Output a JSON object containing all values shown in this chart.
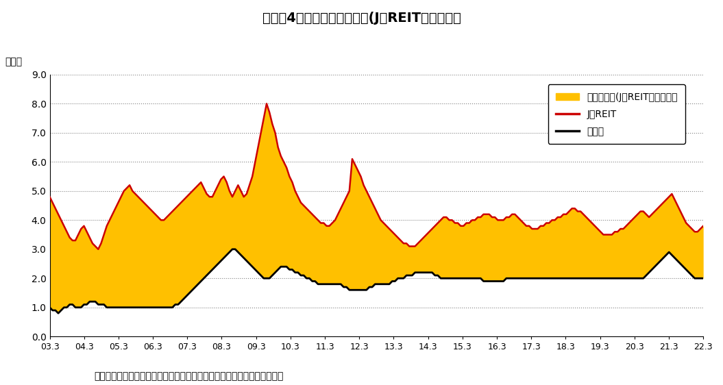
{
  "title": "図表－4　配当利回りの推移(J－REIT、国内株）",
  "ylabel": "（％）",
  "source_text": "（出所）東京証券取引所のデータなどをもとにニッセイ基礎研究所が作成",
  "x_labels": [
    "03.3",
    "04.3",
    "05.3",
    "06.3",
    "07.3",
    "08.3",
    "09.3",
    "10.3",
    "11.3",
    "12.3",
    "13.3",
    "14.3",
    "15.3",
    "16.3",
    "17.3",
    "18.3",
    "19.3",
    "20.3",
    "21.3",
    "22.3"
  ],
  "ylim": [
    0.0,
    9.0
  ],
  "yticks": [
    0.0,
    1.0,
    2.0,
    3.0,
    4.0,
    5.0,
    6.0,
    7.0,
    8.0,
    9.0
  ],
  "jreit_color": "#cc0000",
  "domestic_color": "#000000",
  "spread_color": "#FFC000",
  "legend_spread": "利回り格差(J－REIT－国内株）",
  "legend_jreit": "J－REIT",
  "legend_domestic": "国内株",
  "background_color": "#ffffff",
  "jreit": [
    4.8,
    4.6,
    4.4,
    4.2,
    4.0,
    3.8,
    3.6,
    3.4,
    3.3,
    3.3,
    3.5,
    3.7,
    3.8,
    3.6,
    3.4,
    3.2,
    3.1,
    3.0,
    3.2,
    3.5,
    3.8,
    4.0,
    4.2,
    4.4,
    4.6,
    4.8,
    5.0,
    5.1,
    5.2,
    5.0,
    4.9,
    4.8,
    4.7,
    4.6,
    4.5,
    4.4,
    4.3,
    4.2,
    4.1,
    4.0,
    4.0,
    4.1,
    4.2,
    4.3,
    4.4,
    4.5,
    4.6,
    4.7,
    4.8,
    4.9,
    5.0,
    5.1,
    5.2,
    5.3,
    5.1,
    4.9,
    4.8,
    4.8,
    5.0,
    5.2,
    5.4,
    5.5,
    5.3,
    5.0,
    4.8,
    5.0,
    5.2,
    5.0,
    4.8,
    4.9,
    5.2,
    5.5,
    6.0,
    6.5,
    7.0,
    7.5,
    8.0,
    7.7,
    7.3,
    7.0,
    6.5,
    6.2,
    6.0,
    5.8,
    5.5,
    5.3,
    5.0,
    4.8,
    4.6,
    4.5,
    4.4,
    4.3,
    4.2,
    4.1,
    4.0,
    3.9,
    3.9,
    3.8,
    3.8,
    3.9,
    4.0,
    4.2,
    4.4,
    4.6,
    4.8,
    5.0,
    6.1,
    5.9,
    5.7,
    5.5,
    5.2,
    5.0,
    4.8,
    4.6,
    4.4,
    4.2,
    4.0,
    3.9,
    3.8,
    3.7,
    3.6,
    3.5,
    3.4,
    3.3,
    3.2,
    3.2,
    3.1,
    3.1,
    3.1,
    3.2,
    3.3,
    3.4,
    3.5,
    3.6,
    3.7,
    3.8,
    3.9,
    4.0,
    4.1,
    4.1,
    4.0,
    4.0,
    3.9,
    3.9,
    3.8,
    3.8,
    3.9,
    3.9,
    4.0,
    4.0,
    4.1,
    4.1,
    4.2,
    4.2,
    4.2,
    4.1,
    4.1,
    4.0,
    4.0,
    4.0,
    4.1,
    4.1,
    4.2,
    4.2,
    4.1,
    4.0,
    3.9,
    3.8,
    3.8,
    3.7,
    3.7,
    3.7,
    3.8,
    3.8,
    3.9,
    3.9,
    4.0,
    4.0,
    4.1,
    4.1,
    4.2,
    4.2,
    4.3,
    4.4,
    4.4,
    4.3,
    4.3,
    4.2,
    4.1,
    4.0,
    3.9,
    3.8,
    3.7,
    3.6,
    3.5,
    3.5,
    3.5,
    3.5,
    3.6,
    3.6,
    3.7,
    3.7,
    3.8,
    3.9,
    4.0,
    4.1,
    4.2,
    4.3,
    4.3,
    4.2,
    4.1,
    4.2,
    4.3,
    4.4,
    4.5,
    4.6,
    4.7,
    4.8,
    4.9,
    4.7,
    4.5,
    4.3,
    4.1,
    3.9,
    3.8,
    3.7,
    3.6,
    3.6,
    3.7,
    3.8
  ],
  "domestic": [
    1.0,
    0.9,
    0.9,
    0.8,
    0.9,
    1.0,
    1.0,
    1.1,
    1.1,
    1.0,
    1.0,
    1.0,
    1.1,
    1.1,
    1.2,
    1.2,
    1.2,
    1.1,
    1.1,
    1.1,
    1.0,
    1.0,
    1.0,
    1.0,
    1.0,
    1.0,
    1.0,
    1.0,
    1.0,
    1.0,
    1.0,
    1.0,
    1.0,
    1.0,
    1.0,
    1.0,
    1.0,
    1.0,
    1.0,
    1.0,
    1.0,
    1.0,
    1.0,
    1.0,
    1.1,
    1.1,
    1.2,
    1.3,
    1.4,
    1.5,
    1.6,
    1.7,
    1.8,
    1.9,
    2.0,
    2.1,
    2.2,
    2.3,
    2.4,
    2.5,
    2.6,
    2.7,
    2.8,
    2.9,
    3.0,
    3.0,
    2.9,
    2.8,
    2.7,
    2.6,
    2.5,
    2.4,
    2.3,
    2.2,
    2.1,
    2.0,
    2.0,
    2.0,
    2.1,
    2.2,
    2.3,
    2.4,
    2.4,
    2.4,
    2.3,
    2.3,
    2.2,
    2.2,
    2.1,
    2.1,
    2.0,
    2.0,
    1.9,
    1.9,
    1.8,
    1.8,
    1.8,
    1.8,
    1.8,
    1.8,
    1.8,
    1.8,
    1.8,
    1.7,
    1.7,
    1.6,
    1.6,
    1.6,
    1.6,
    1.6,
    1.6,
    1.6,
    1.7,
    1.7,
    1.8,
    1.8,
    1.8,
    1.8,
    1.8,
    1.8,
    1.9,
    1.9,
    2.0,
    2.0,
    2.0,
    2.1,
    2.1,
    2.1,
    2.2,
    2.2,
    2.2,
    2.2,
    2.2,
    2.2,
    2.2,
    2.1,
    2.1,
    2.0,
    2.0,
    2.0,
    2.0,
    2.0,
    2.0,
    2.0,
    2.0,
    2.0,
    2.0,
    2.0,
    2.0,
    2.0,
    2.0,
    2.0,
    1.9,
    1.9,
    1.9,
    1.9,
    1.9,
    1.9,
    1.9,
    1.9,
    2.0,
    2.0,
    2.0,
    2.0,
    2.0,
    2.0,
    2.0,
    2.0,
    2.0,
    2.0,
    2.0,
    2.0,
    2.0,
    2.0,
    2.0,
    2.0,
    2.0,
    2.0,
    2.0,
    2.0,
    2.0,
    2.0,
    2.0,
    2.0,
    2.0,
    2.0,
    2.0,
    2.0,
    2.0,
    2.0,
    2.0,
    2.0,
    2.0,
    2.0,
    2.0,
    2.0,
    2.0,
    2.0,
    2.0,
    2.0,
    2.0,
    2.0,
    2.0,
    2.0,
    2.0,
    2.0,
    2.0,
    2.0,
    2.0,
    2.1,
    2.2,
    2.3,
    2.4,
    2.5,
    2.6,
    2.7,
    2.8,
    2.9,
    2.8,
    2.7,
    2.6,
    2.5,
    2.4,
    2.3,
    2.2,
    2.1,
    2.0,
    2.0,
    2.0,
    2.0
  ]
}
